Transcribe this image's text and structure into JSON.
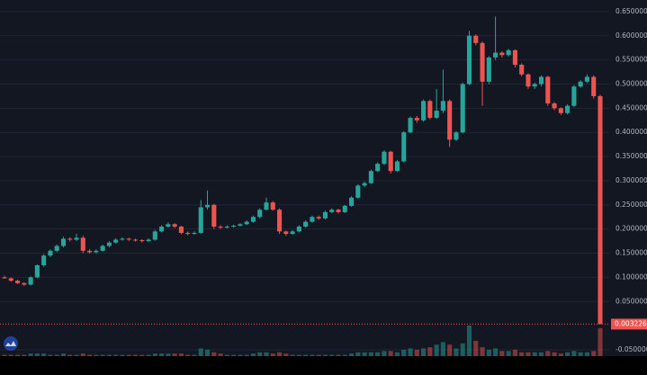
{
  "chart_data": {
    "type": "candlestick",
    "up_color": "#26a69a",
    "down_color": "#ef5350",
    "ylim": [
      -0.063,
      0.674
    ],
    "yticks": [
      {
        "value": 0.65,
        "label": "0.650000"
      },
      {
        "value": 0.6,
        "label": "0.600000"
      },
      {
        "value": 0.55,
        "label": "0.550000"
      },
      {
        "value": 0.5,
        "label": "0.500000"
      },
      {
        "value": 0.45,
        "label": "0.450000"
      },
      {
        "value": 0.4,
        "label": "0.400000"
      },
      {
        "value": 0.35,
        "label": "0.350000"
      },
      {
        "value": 0.3,
        "label": "0.300000"
      },
      {
        "value": 0.25,
        "label": "0.250000"
      },
      {
        "value": 0.2,
        "label": "0.200000"
      },
      {
        "value": 0.15,
        "label": "0.150000"
      },
      {
        "value": 0.1,
        "label": "0.100000"
      },
      {
        "value": 0.05,
        "label": "0.050000"
      },
      {
        "value": -0.05,
        "label": "-0.050000"
      }
    ],
    "last_price": {
      "value": 0.003226,
      "label": "0.003226"
    },
    "grid": true,
    "ohlc": [
      [
        0.1,
        0.103,
        0.097,
        0.098
      ],
      [
        0.098,
        0.1,
        0.091,
        0.093
      ],
      [
        0.093,
        0.095,
        0.086,
        0.088
      ],
      [
        0.088,
        0.09,
        0.082,
        0.085
      ],
      [
        0.085,
        0.102,
        0.083,
        0.1
      ],
      [
        0.1,
        0.127,
        0.098,
        0.125
      ],
      [
        0.125,
        0.148,
        0.122,
        0.145
      ],
      [
        0.145,
        0.158,
        0.142,
        0.155
      ],
      [
        0.155,
        0.168,
        0.152,
        0.165
      ],
      [
        0.165,
        0.184,
        0.162,
        0.18
      ],
      [
        0.18,
        0.183,
        0.174,
        0.178
      ],
      [
        0.178,
        0.19,
        0.175,
        0.182
      ],
      [
        0.182,
        0.186,
        0.15,
        0.155
      ],
      [
        0.155,
        0.158,
        0.149,
        0.152
      ],
      [
        0.152,
        0.158,
        0.149,
        0.155
      ],
      [
        0.155,
        0.168,
        0.153,
        0.165
      ],
      [
        0.165,
        0.175,
        0.162,
        0.172
      ],
      [
        0.172,
        0.181,
        0.17,
        0.178
      ],
      [
        0.178,
        0.183,
        0.176,
        0.18
      ],
      [
        0.18,
        0.182,
        0.175,
        0.178
      ],
      [
        0.178,
        0.18,
        0.174,
        0.177
      ],
      [
        0.177,
        0.179,
        0.172,
        0.175
      ],
      [
        0.175,
        0.181,
        0.173,
        0.178
      ],
      [
        0.178,
        0.198,
        0.176,
        0.195
      ],
      [
        0.195,
        0.208,
        0.193,
        0.205
      ],
      [
        0.205,
        0.214,
        0.203,
        0.21
      ],
      [
        0.21,
        0.212,
        0.202,
        0.205
      ],
      [
        0.205,
        0.207,
        0.189,
        0.192
      ],
      [
        0.192,
        0.195,
        0.187,
        0.19
      ],
      [
        0.19,
        0.195,
        0.188,
        0.192
      ],
      [
        0.192,
        0.26,
        0.19,
        0.245
      ],
      [
        0.245,
        0.28,
        0.24,
        0.25
      ],
      [
        0.25,
        0.252,
        0.2,
        0.205
      ],
      [
        0.205,
        0.208,
        0.2,
        0.203
      ],
      [
        0.203,
        0.208,
        0.201,
        0.205
      ],
      [
        0.205,
        0.209,
        0.203,
        0.207
      ],
      [
        0.207,
        0.212,
        0.205,
        0.21
      ],
      [
        0.21,
        0.218,
        0.208,
        0.215
      ],
      [
        0.215,
        0.228,
        0.213,
        0.225
      ],
      [
        0.225,
        0.243,
        0.222,
        0.24
      ],
      [
        0.24,
        0.265,
        0.238,
        0.255
      ],
      [
        0.255,
        0.258,
        0.238,
        0.24
      ],
      [
        0.24,
        0.243,
        0.19,
        0.195
      ],
      [
        0.195,
        0.197,
        0.186,
        0.19
      ],
      [
        0.19,
        0.198,
        0.188,
        0.195
      ],
      [
        0.195,
        0.208,
        0.193,
        0.205
      ],
      [
        0.205,
        0.218,
        0.203,
        0.215
      ],
      [
        0.215,
        0.228,
        0.213,
        0.225
      ],
      [
        0.225,
        0.228,
        0.219,
        0.222
      ],
      [
        0.222,
        0.238,
        0.22,
        0.235
      ],
      [
        0.235,
        0.243,
        0.233,
        0.24
      ],
      [
        0.24,
        0.242,
        0.232,
        0.235
      ],
      [
        0.235,
        0.25,
        0.233,
        0.248
      ],
      [
        0.248,
        0.268,
        0.246,
        0.265
      ],
      [
        0.265,
        0.293,
        0.263,
        0.29
      ],
      [
        0.29,
        0.298,
        0.287,
        0.295
      ],
      [
        0.295,
        0.323,
        0.293,
        0.32
      ],
      [
        0.32,
        0.338,
        0.318,
        0.335
      ],
      [
        0.335,
        0.363,
        0.332,
        0.36
      ],
      [
        0.36,
        0.362,
        0.315,
        0.32
      ],
      [
        0.32,
        0.343,
        0.318,
        0.34
      ],
      [
        0.34,
        0.403,
        0.338,
        0.4
      ],
      [
        0.4,
        0.433,
        0.398,
        0.43
      ],
      [
        0.43,
        0.434,
        0.42,
        0.425
      ],
      [
        0.425,
        0.468,
        0.422,
        0.465
      ],
      [
        0.465,
        0.468,
        0.427,
        0.43
      ],
      [
        0.43,
        0.49,
        0.428,
        0.445
      ],
      [
        0.445,
        0.53,
        0.44,
        0.465
      ],
      [
        0.465,
        0.468,
        0.37,
        0.385
      ],
      [
        0.385,
        0.403,
        0.382,
        0.4
      ],
      [
        0.4,
        0.503,
        0.398,
        0.5
      ],
      [
        0.5,
        0.61,
        0.498,
        0.6
      ],
      [
        0.6,
        0.603,
        0.58,
        0.585
      ],
      [
        0.585,
        0.588,
        0.455,
        0.505
      ],
      [
        0.505,
        0.558,
        0.5,
        0.555
      ],
      [
        0.555,
        0.64,
        0.55,
        0.565
      ],
      [
        0.565,
        0.568,
        0.555,
        0.56
      ],
      [
        0.56,
        0.573,
        0.557,
        0.57
      ],
      [
        0.57,
        0.572,
        0.535,
        0.54
      ],
      [
        0.54,
        0.543,
        0.516,
        0.52
      ],
      [
        0.52,
        0.522,
        0.49,
        0.495
      ],
      [
        0.495,
        0.503,
        0.49,
        0.5
      ],
      [
        0.5,
        0.518,
        0.495,
        0.515
      ],
      [
        0.515,
        0.517,
        0.455,
        0.46
      ],
      [
        0.46,
        0.463,
        0.446,
        0.45
      ],
      [
        0.45,
        0.452,
        0.436,
        0.44
      ],
      [
        0.44,
        0.458,
        0.437,
        0.455
      ],
      [
        0.455,
        0.498,
        0.452,
        0.495
      ],
      [
        0.495,
        0.508,
        0.492,
        0.505
      ],
      [
        0.505,
        0.52,
        0.502,
        0.515
      ],
      [
        0.515,
        0.518,
        0.47,
        0.475
      ],
      [
        0.475,
        0.478,
        0.003226,
        0.003226
      ]
    ],
    "volume": [
      1,
      1,
      1,
      1,
      2,
      2,
      2,
      1,
      1,
      2,
      1,
      1,
      2,
      1,
      1,
      1,
      1,
      1,
      1,
      1,
      1,
      1,
      1,
      2,
      2,
      2,
      2,
      2,
      1,
      1,
      6,
      5,
      3,
      2,
      1,
      1,
      1,
      1,
      2,
      3,
      3,
      2,
      3,
      2,
      1,
      1,
      1,
      1,
      1,
      1,
      1,
      1,
      1,
      2,
      3,
      3,
      3,
      3,
      4,
      4,
      3,
      5,
      6,
      5,
      6,
      7,
      9,
      11,
      9,
      6,
      10,
      24,
      12,
      7,
      5,
      6,
      4,
      4,
      5,
      3,
      3,
      3,
      3,
      4,
      3,
      2,
      3,
      4,
      3,
      3,
      4,
      22
    ]
  }
}
